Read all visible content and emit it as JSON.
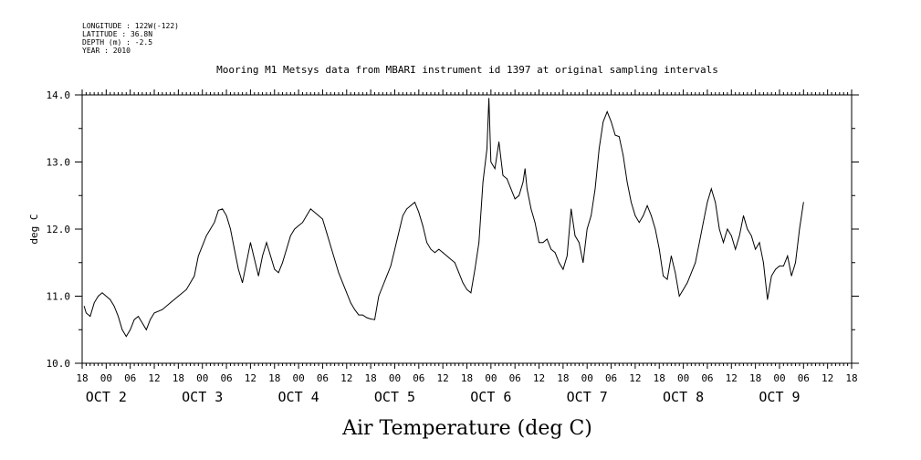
{
  "header": {
    "longitude": "LONGITUDE : 122W(-122)",
    "latitude": "LATITUDE : 36.8N",
    "depth": "DEPTH (m) : -2.5",
    "year": "YEAR : 2010"
  },
  "chart_data": {
    "type": "line",
    "title": "Mooring M1 Metsys data from MBARI instrument id 1397 at original sampling intervals",
    "xlabel": "Air Temperature (deg C)",
    "ylabel": "deg C",
    "ylim": [
      10.0,
      14.0
    ],
    "yticks": [
      "10.0",
      "11.0",
      "12.0",
      "13.0",
      "14.0"
    ],
    "x_unit": "hours since OCT 1 18:00",
    "xlim": [
      0,
      192
    ],
    "hour_tick_labels": [
      "18",
      "00",
      "06",
      "12",
      "18",
      "00",
      "06",
      "12",
      "18",
      "00",
      "06",
      "12",
      "18",
      "00",
      "06",
      "12",
      "18",
      "00",
      "06",
      "12",
      "18",
      "00",
      "06",
      "12",
      "18",
      "00",
      "06",
      "12",
      "18",
      "00",
      "06",
      "12",
      "18"
    ],
    "day_labels": [
      {
        "text": "OCT  2",
        "hour": 6
      },
      {
        "text": "OCT  3",
        "hour": 30
      },
      {
        "text": "OCT  4",
        "hour": 54
      },
      {
        "text": "OCT  5",
        "hour": 78
      },
      {
        "text": "OCT  6",
        "hour": 102
      },
      {
        "text": "OCT  7",
        "hour": 126
      },
      {
        "text": "OCT  8",
        "hour": 150
      },
      {
        "text": "OCT  9",
        "hour": 174
      }
    ],
    "series": [
      {
        "values": [
          [
            0.5,
            10.85
          ],
          [
            1,
            10.75
          ],
          [
            2,
            10.7
          ],
          [
            3,
            10.9
          ],
          [
            4,
            11.0
          ],
          [
            5,
            11.05
          ],
          [
            6,
            11.0
          ],
          [
            7,
            10.95
          ],
          [
            8,
            10.85
          ],
          [
            9,
            10.7
          ],
          [
            10,
            10.5
          ],
          [
            11,
            10.4
          ],
          [
            12,
            10.5
          ],
          [
            13,
            10.65
          ],
          [
            14,
            10.7
          ],
          [
            15,
            10.6
          ],
          [
            16,
            10.5
          ],
          [
            17,
            10.65
          ],
          [
            18,
            10.75
          ],
          [
            20,
            10.8
          ],
          [
            22,
            10.9
          ],
          [
            24,
            11.0
          ],
          [
            26,
            11.1
          ],
          [
            28,
            11.3
          ],
          [
            29,
            11.6
          ],
          [
            30,
            11.75
          ],
          [
            31,
            11.9
          ],
          [
            32,
            12.0
          ],
          [
            33,
            12.1
          ],
          [
            34,
            12.28
          ],
          [
            35,
            12.3
          ],
          [
            36,
            12.2
          ],
          [
            37,
            12.0
          ],
          [
            38,
            11.7
          ],
          [
            39,
            11.4
          ],
          [
            40,
            11.2
          ],
          [
            41,
            11.5
          ],
          [
            42,
            11.8
          ],
          [
            43,
            11.55
          ],
          [
            44,
            11.3
          ],
          [
            45,
            11.6
          ],
          [
            46,
            11.8
          ],
          [
            47,
            11.6
          ],
          [
            48,
            11.4
          ],
          [
            49,
            11.35
          ],
          [
            50,
            11.5
          ],
          [
            51,
            11.7
          ],
          [
            52,
            11.9
          ],
          [
            53,
            12.0
          ],
          [
            54,
            12.05
          ],
          [
            55,
            12.1
          ],
          [
            56,
            12.2
          ],
          [
            57,
            12.3
          ],
          [
            58,
            12.25
          ],
          [
            59,
            12.2
          ],
          [
            60,
            12.15
          ],
          [
            61,
            11.95
          ],
          [
            62,
            11.75
          ],
          [
            63,
            11.55
          ],
          [
            64,
            11.35
          ],
          [
            65,
            11.2
          ],
          [
            66,
            11.05
          ],
          [
            67,
            10.9
          ],
          [
            68,
            10.8
          ],
          [
            69,
            10.72
          ],
          [
            70,
            10.72
          ],
          [
            71,
            10.68
          ],
          [
            72,
            10.66
          ],
          [
            73,
            10.65
          ],
          [
            74,
            11.0
          ],
          [
            75,
            11.15
          ],
          [
            76,
            11.3
          ],
          [
            77,
            11.45
          ],
          [
            78,
            11.7
          ],
          [
            79,
            11.95
          ],
          [
            80,
            12.2
          ],
          [
            81,
            12.3
          ],
          [
            82,
            12.35
          ],
          [
            83,
            12.4
          ],
          [
            84,
            12.25
          ],
          [
            85,
            12.05
          ],
          [
            86,
            11.8
          ],
          [
            87,
            11.7
          ],
          [
            88,
            11.65
          ],
          [
            89,
            11.7
          ],
          [
            90,
            11.65
          ],
          [
            91,
            11.6
          ],
          [
            92,
            11.55
          ],
          [
            93,
            11.5
          ],
          [
            94,
            11.35
          ],
          [
            95,
            11.2
          ],
          [
            96,
            11.1
          ],
          [
            97,
            11.05
          ],
          [
            98,
            11.4
          ],
          [
            99,
            11.8
          ],
          [
            100,
            12.7
          ],
          [
            101,
            13.2
          ],
          [
            101.5,
            13.95
          ],
          [
            102,
            13.0
          ],
          [
            103,
            12.9
          ],
          [
            104,
            13.3
          ],
          [
            105,
            12.8
          ],
          [
            106,
            12.75
          ],
          [
            107,
            12.6
          ],
          [
            108,
            12.45
          ],
          [
            109,
            12.5
          ],
          [
            110,
            12.7
          ],
          [
            110.5,
            12.9
          ],
          [
            111,
            12.6
          ],
          [
            112,
            12.3
          ],
          [
            113,
            12.1
          ],
          [
            114,
            11.8
          ],
          [
            115,
            11.8
          ],
          [
            116,
            11.85
          ],
          [
            117,
            11.7
          ],
          [
            118,
            11.65
          ],
          [
            119,
            11.5
          ],
          [
            120,
            11.4
          ],
          [
            121,
            11.6
          ],
          [
            122,
            12.3
          ],
          [
            123,
            11.9
          ],
          [
            124,
            11.8
          ],
          [
            125,
            11.5
          ],
          [
            126,
            12.0
          ],
          [
            127,
            12.2
          ],
          [
            128,
            12.6
          ],
          [
            129,
            13.2
          ],
          [
            130,
            13.6
          ],
          [
            131,
            13.75
          ],
          [
            132,
            13.6
          ],
          [
            133,
            13.4
          ],
          [
            134,
            13.38
          ],
          [
            135,
            13.1
          ],
          [
            136,
            12.7
          ],
          [
            137,
            12.4
          ],
          [
            138,
            12.2
          ],
          [
            139,
            12.1
          ],
          [
            140,
            12.2
          ],
          [
            141,
            12.35
          ],
          [
            142,
            12.2
          ],
          [
            143,
            12.0
          ],
          [
            144,
            11.7
          ],
          [
            145,
            11.3
          ],
          [
            146,
            11.25
          ],
          [
            147,
            11.6
          ],
          [
            148,
            11.35
          ],
          [
            149,
            11.0
          ],
          [
            150,
            11.1
          ],
          [
            151,
            11.2
          ],
          [
            152,
            11.35
          ],
          [
            153,
            11.5
          ],
          [
            154,
            11.8
          ],
          [
            155,
            12.1
          ],
          [
            156,
            12.4
          ],
          [
            157,
            12.6
          ],
          [
            158,
            12.4
          ],
          [
            159,
            12.0
          ],
          [
            160,
            11.8
          ],
          [
            161,
            12.0
          ],
          [
            162,
            11.9
          ],
          [
            163,
            11.7
          ],
          [
            164,
            11.9
          ],
          [
            165,
            12.2
          ],
          [
            166,
            12.0
          ],
          [
            167,
            11.9
          ],
          [
            168,
            11.7
          ],
          [
            169,
            11.8
          ],
          [
            170,
            11.5
          ],
          [
            171,
            10.95
          ],
          [
            172,
            11.3
          ],
          [
            173,
            11.4
          ],
          [
            174,
            11.45
          ],
          [
            175,
            11.45
          ],
          [
            176,
            11.6
          ],
          [
            177,
            11.3
          ],
          [
            178,
            11.5
          ],
          [
            179,
            12.0
          ],
          [
            180,
            12.4
          ]
        ]
      }
    ]
  }
}
